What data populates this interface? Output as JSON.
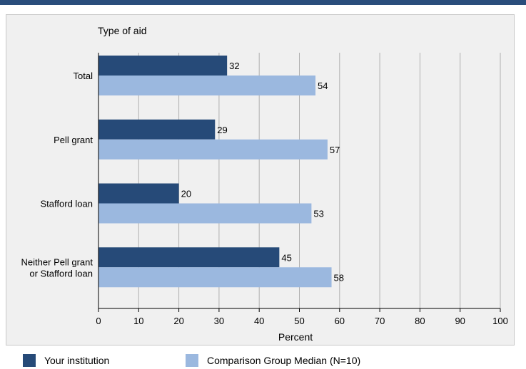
{
  "colors": {
    "your_institution": "#264a78",
    "comparison": "#9bb8df",
    "grid": "#b0b0b0",
    "background": "#f0f0f0"
  },
  "chart_data": {
    "type": "bar",
    "orientation": "horizontal",
    "title": "Type of aid",
    "xlabel": "Percent",
    "xlim": [
      0,
      100
    ],
    "xticks": [
      0,
      10,
      20,
      30,
      40,
      50,
      60,
      70,
      80,
      90,
      100
    ],
    "categories": [
      [
        "Total"
      ],
      [
        "Pell grant"
      ],
      [
        "Stafford loan"
      ],
      [
        "Neither Pell grant",
        "or Stafford loan"
      ]
    ],
    "series": [
      {
        "name": "Your institution",
        "values": [
          32,
          29,
          20,
          45
        ]
      },
      {
        "name": "Comparison Group Median (N=10)",
        "values": [
          54,
          57,
          53,
          58
        ]
      }
    ],
    "grid": true,
    "legend": "bottom"
  }
}
